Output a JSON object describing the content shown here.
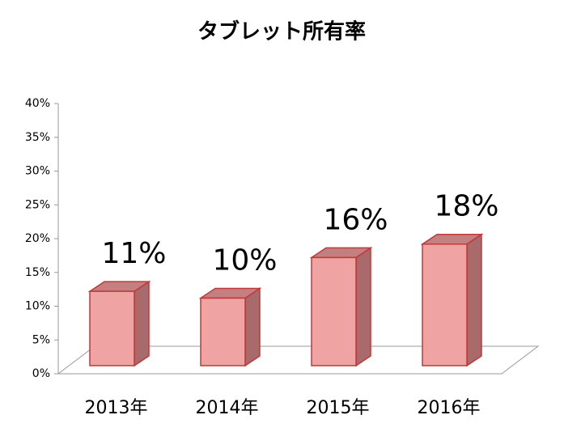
{
  "chart_data": {
    "type": "bar3d",
    "title": "タブレット所有率",
    "categories": [
      "2013年",
      "2014年",
      "2015年",
      "2016年"
    ],
    "values": [
      11,
      10,
      16,
      18
    ],
    "value_labels": [
      "11%",
      "10%",
      "16%",
      "18%"
    ],
    "color": "#f0a3a3",
    "ylim": [
      0,
      40
    ],
    "yticks": [
      {
        "value": 0,
        "label": "0%"
      },
      {
        "value": 5,
        "label": "5%"
      },
      {
        "value": 10,
        "label": "10%"
      },
      {
        "value": 15,
        "label": "15%"
      },
      {
        "value": 20,
        "label": "20%"
      },
      {
        "value": 25,
        "label": "25%"
      },
      {
        "value": 30,
        "label": "30%"
      },
      {
        "value": 35,
        "label": "35%"
      },
      {
        "value": 40,
        "label": "40%"
      }
    ]
  }
}
